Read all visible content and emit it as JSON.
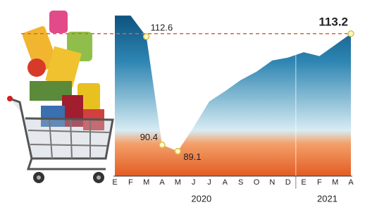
{
  "chart_data": {
    "type": "area",
    "categories": [
      "E",
      "F",
      "M",
      "A",
      "M",
      "J",
      "J",
      "A",
      "S",
      "O",
      "N",
      "D",
      "E",
      "F",
      "M",
      "A"
    ],
    "groups": [
      {
        "label": "2020",
        "size": 12
      },
      {
        "label": "2021",
        "size": 4
      }
    ],
    "series": [
      {
        "values": [
          116.9,
          116.9,
          112.6,
          90.4,
          89.1,
          94.0,
          99.3,
          101.4,
          103.7,
          105.4,
          107.7,
          108.3,
          109.4,
          108.6,
          110.9,
          113.2
        ],
        "value_labels": [
          null,
          null,
          "112.6",
          "90.4",
          "89.1",
          null,
          null,
          null,
          null,
          null,
          null,
          null,
          null,
          null,
          null,
          "113.2"
        ]
      }
    ],
    "ylim": [
      84,
      117.5
    ],
    "reference_line": {
      "value": 113.2,
      "color": "#e2612f"
    },
    "gradient": [
      "#0b4f7c",
      "#2f86b3",
      "#d7ecf3",
      "#f4a06a",
      "#e25c24"
    ]
  }
}
